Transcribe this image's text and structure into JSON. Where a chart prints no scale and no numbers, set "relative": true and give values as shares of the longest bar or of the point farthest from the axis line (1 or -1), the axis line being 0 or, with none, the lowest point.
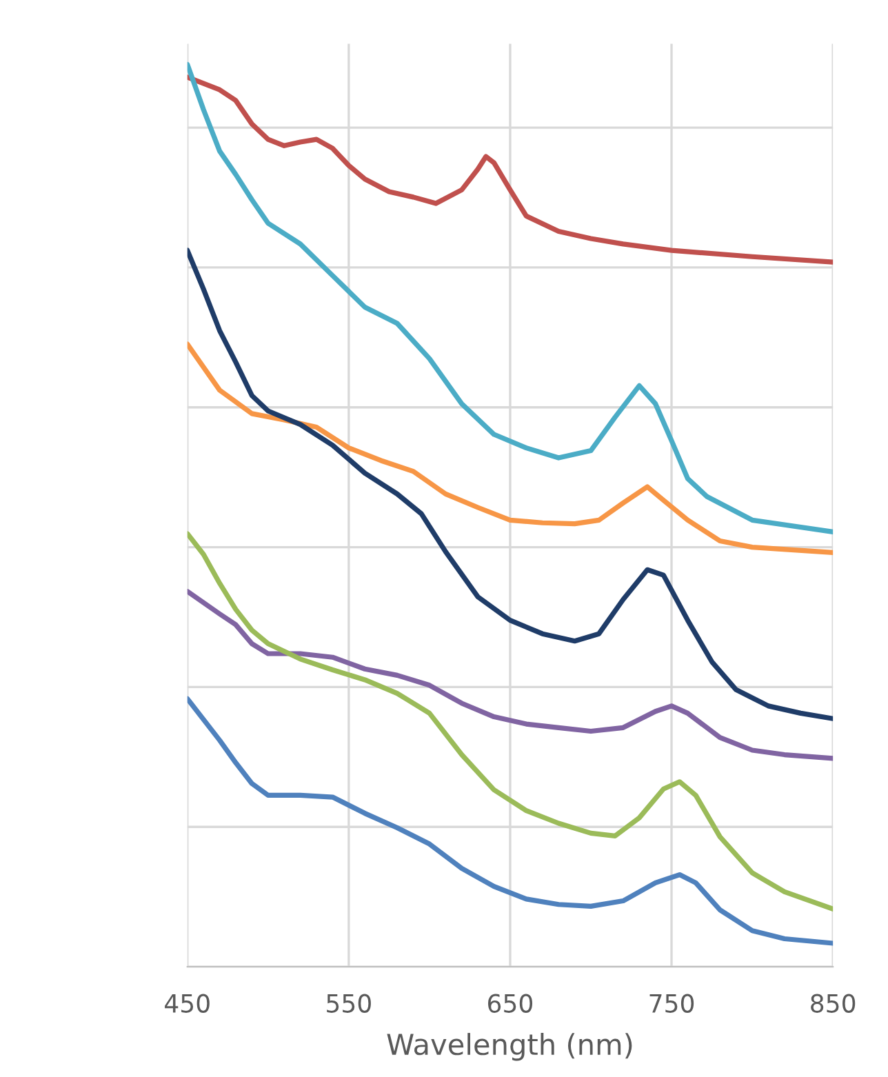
{
  "chart_data": {
    "type": "line",
    "xlabel": "Wavelength (nm)",
    "relative": true,
    "xlim": [
      450,
      850
    ],
    "xticks": [
      450,
      550,
      650,
      750,
      850
    ],
    "grid": true,
    "legend": false,
    "marker": "none",
    "line_style": "solid",
    "series": [
      {
        "color": "#c0504d",
        "x": [
          450,
          470,
          480,
          490,
          500,
          510,
          520,
          530,
          540,
          550,
          560,
          575,
          590,
          604,
          620,
          630,
          635,
          640,
          650,
          660,
          680,
          700,
          720,
          750,
          800,
          850
        ],
        "values": [
          0.986,
          0.972,
          0.96,
          0.934,
          0.917,
          0.91,
          0.914,
          0.917,
          0.907,
          0.888,
          0.873,
          0.859,
          0.853,
          0.846,
          0.861,
          0.884,
          0.898,
          0.891,
          0.861,
          0.832,
          0.815,
          0.807,
          0.801,
          0.794,
          0.787,
          0.781
        ]
      },
      {
        "color": "#4bacc6",
        "x": [
          450,
          460,
          470,
          480,
          490,
          500,
          520,
          540,
          560,
          580,
          600,
          620,
          640,
          660,
          680,
          700,
          715,
          730,
          740,
          750,
          760,
          772,
          800,
          850
        ],
        "values": [
          1.0,
          0.95,
          0.904,
          0.878,
          0.85,
          0.824,
          0.801,
          0.766,
          0.731,
          0.713,
          0.674,
          0.624,
          0.59,
          0.575,
          0.564,
          0.572,
          0.609,
          0.644,
          0.624,
          0.583,
          0.541,
          0.521,
          0.495,
          0.482
        ]
      },
      {
        "color": "#f79646",
        "x": [
          450,
          470,
          490,
          510,
          530,
          550,
          570,
          590,
          610,
          630,
          650,
          670,
          690,
          705,
          720,
          735,
          745,
          760,
          780,
          800,
          850
        ],
        "values": [
          0.69,
          0.639,
          0.613,
          0.606,
          0.598,
          0.575,
          0.561,
          0.549,
          0.524,
          0.509,
          0.495,
          0.492,
          0.491,
          0.495,
          0.514,
          0.532,
          0.517,
          0.495,
          0.472,
          0.465,
          0.459
        ]
      },
      {
        "color": "#1f3c68",
        "x": [
          450,
          460,
          470,
          480,
          490,
          500,
          520,
          540,
          560,
          580,
          595,
          610,
          630,
          650,
          670,
          690,
          705,
          720,
          735,
          745,
          760,
          775,
          790,
          810,
          830,
          850
        ],
        "values": [
          0.794,
          0.751,
          0.705,
          0.67,
          0.633,
          0.616,
          0.601,
          0.578,
          0.547,
          0.524,
          0.502,
          0.46,
          0.41,
          0.384,
          0.369,
          0.361,
          0.369,
          0.407,
          0.44,
          0.434,
          0.384,
          0.338,
          0.307,
          0.289,
          0.281,
          0.275
        ]
      },
      {
        "color": "#8064a2",
        "x": [
          450,
          470,
          480,
          490,
          500,
          520,
          540,
          560,
          580,
          600,
          620,
          640,
          660,
          680,
          700,
          720,
          740,
          750,
          760,
          780,
          800,
          820,
          850
        ],
        "values": [
          0.416,
          0.391,
          0.379,
          0.358,
          0.347,
          0.347,
          0.343,
          0.33,
          0.323,
          0.312,
          0.292,
          0.277,
          0.269,
          0.265,
          0.261,
          0.265,
          0.283,
          0.289,
          0.281,
          0.254,
          0.24,
          0.235,
          0.231
        ]
      },
      {
        "color": "#9bbb59",
        "x": [
          450,
          460,
          470,
          480,
          490,
          500,
          520,
          540,
          560,
          580,
          600,
          620,
          640,
          660,
          680,
          700,
          715,
          730,
          745,
          755,
          765,
          780,
          800,
          820,
          850
        ],
        "values": [
          0.48,
          0.457,
          0.425,
          0.396,
          0.373,
          0.358,
          0.341,
          0.329,
          0.318,
          0.303,
          0.281,
          0.235,
          0.196,
          0.173,
          0.159,
          0.148,
          0.145,
          0.165,
          0.197,
          0.205,
          0.19,
          0.144,
          0.104,
          0.083,
          0.064
        ]
      },
      {
        "color": "#4f81bd",
        "x": [
          450,
          470,
          480,
          490,
          500,
          520,
          540,
          560,
          580,
          600,
          620,
          640,
          660,
          680,
          700,
          720,
          740,
          755,
          765,
          780,
          800,
          820,
          850
        ],
        "values": [
          0.297,
          0.251,
          0.226,
          0.203,
          0.19,
          0.19,
          0.188,
          0.17,
          0.154,
          0.136,
          0.109,
          0.089,
          0.075,
          0.069,
          0.067,
          0.073,
          0.093,
          0.102,
          0.093,
          0.063,
          0.04,
          0.031,
          0.026
        ]
      }
    ]
  }
}
